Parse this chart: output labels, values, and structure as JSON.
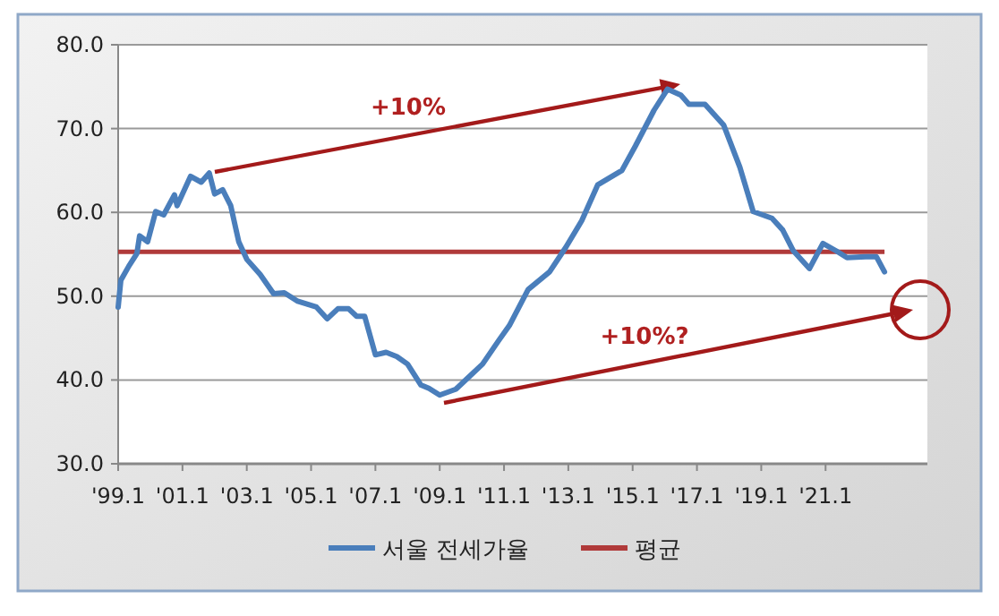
{
  "chart_data": {
    "type": "line",
    "xlim": [
      "1999-01",
      "2024-03"
    ],
    "xticks": [
      {
        "value": "1999-01",
        "label": "'99.1"
      },
      {
        "value": "2001-01",
        "label": "'01.1"
      },
      {
        "value": "2003-01",
        "label": "'03.1"
      },
      {
        "value": "2005-01",
        "label": "'05.1"
      },
      {
        "value": "2007-01",
        "label": "'07.1"
      },
      {
        "value": "2009-01",
        "label": "'09.1"
      },
      {
        "value": "2011-01",
        "label": "'11.1"
      },
      {
        "value": "2013-01",
        "label": "'13.1"
      },
      {
        "value": "2015-01",
        "label": "'15.1"
      },
      {
        "value": "2017-01",
        "label": "'17.1"
      },
      {
        "value": "2019-01",
        "label": "'19.1"
      },
      {
        "value": "2021-01",
        "label": "'21.1"
      }
    ],
    "ylim": [
      30,
      80
    ],
    "yticks": [
      {
        "value": 30,
        "label": "30.0"
      },
      {
        "value": 40,
        "label": "40.0"
      },
      {
        "value": 50,
        "label": "50.0"
      },
      {
        "value": 60,
        "label": "60.0"
      },
      {
        "value": 70,
        "label": "70.0"
      },
      {
        "value": 80,
        "label": "80.0"
      }
    ],
    "grid": "y",
    "legend": "bottom",
    "series": [
      {
        "name": "서울 전세가율",
        "color": "#4a7ebb",
        "x": [
          "1999-01",
          "1999-02",
          "1999-05",
          "1999-08",
          "1999-09",
          "1999-12",
          "2000-03",
          "2000-06",
          "2000-10",
          "2000-11",
          "2001-04",
          "2001-08",
          "2001-11",
          "2002-01",
          "2002-04",
          "2002-07",
          "2002-10",
          "2003-01",
          "2003-06",
          "2003-11",
          "2004-03",
          "2004-08",
          "2005-03",
          "2005-07",
          "2005-11",
          "2006-03",
          "2006-06",
          "2006-09",
          "2007-01",
          "2007-05",
          "2007-09",
          "2008-01",
          "2008-06",
          "2008-09",
          "2009-01",
          "2009-07",
          "2009-11",
          "2010-05",
          "2010-11",
          "2011-03",
          "2011-10",
          "2012-06",
          "2012-12",
          "2013-06",
          "2013-12",
          "2014-09",
          "2015-02",
          "2015-09",
          "2016-02",
          "2016-07",
          "2016-10",
          "2017-04",
          "2017-11",
          "2018-05",
          "2018-10",
          "2019-05",
          "2019-09",
          "2020-01",
          "2020-07",
          "2020-12",
          "2021-05",
          "2021-09",
          "2022-04",
          "2022-08",
          "2022-11"
        ],
        "values": [
          48.7,
          51.9,
          53.6,
          55.1,
          57.2,
          56.5,
          60.1,
          59.7,
          62.1,
          60.8,
          64.3,
          63.6,
          64.7,
          62.2,
          62.7,
          60.8,
          56.5,
          54.4,
          52.6,
          50.3,
          50.4,
          49.4,
          48.7,
          47.3,
          48.5,
          48.5,
          47.6,
          47.6,
          43.0,
          43.3,
          42.8,
          41.9,
          39.4,
          39.0,
          38.2,
          38.9,
          40.1,
          41.9,
          44.7,
          46.5,
          50.8,
          52.9,
          55.8,
          59.0,
          63.3,
          65.0,
          67.9,
          72.2,
          74.7,
          74.0,
          72.9,
          72.9,
          70.4,
          65.4,
          60.1,
          59.3,
          57.9,
          55.4,
          53.3,
          56.3,
          55.4,
          54.6,
          54.7,
          54.7,
          52.9
        ]
      }
    ],
    "ref_lines": [
      {
        "axis": "y",
        "value": 55.3,
        "label": "평균",
        "color": "#b03a3a"
      }
    ],
    "annotations": [
      "+10%",
      "+10%?"
    ]
  }
}
